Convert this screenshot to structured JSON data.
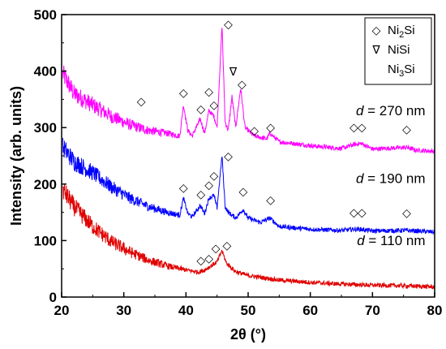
{
  "chart_data": {
    "type": "line",
    "xlabel": "2θ (°)",
    "ylabel": "Intensity (arb. units)",
    "xlim": [
      20,
      80
    ],
    "ylim": [
      0,
      500
    ],
    "x_ticks": [
      "20",
      "30",
      "40",
      "50",
      "60",
      "70",
      "80"
    ],
    "y_ticks": [
      "0",
      "100",
      "200",
      "300",
      "400",
      "500"
    ],
    "grid": false,
    "series": [
      {
        "name": "d = 270 nm",
        "color": "#ff00ff",
        "label_prefix": "d",
        "label_suffix": " = 270 nm",
        "label_at": [
          78.5,
          322
        ],
        "points": [
          [
            20.2,
            395
          ],
          [
            22,
            360
          ],
          [
            25,
            340
          ],
          [
            28,
            320
          ],
          [
            31,
            305
          ],
          [
            34,
            295
          ],
          [
            37,
            290
          ],
          [
            39,
            285
          ],
          [
            39.6,
            340
          ],
          [
            40.3,
            295
          ],
          [
            41,
            285
          ],
          [
            42.3,
            315
          ],
          [
            43,
            290
          ],
          [
            43.7,
            330
          ],
          [
            44.5,
            320
          ],
          [
            45,
            300
          ],
          [
            45.8,
            480
          ],
          [
            46.3,
            310
          ],
          [
            46.8,
            295
          ],
          [
            47.4,
            355
          ],
          [
            48,
            300
          ],
          [
            48.8,
            370
          ],
          [
            49.5,
            300
          ],
          [
            51,
            285
          ],
          [
            53,
            280
          ],
          [
            53.5,
            290
          ],
          [
            55,
            275
          ],
          [
            60,
            268
          ],
          [
            65,
            263
          ],
          [
            67,
            270
          ],
          [
            68.2,
            272
          ],
          [
            70,
            262
          ],
          [
            75.5,
            265
          ],
          [
            77,
            260
          ],
          [
            80,
            258
          ]
        ]
      },
      {
        "name": "d = 190 nm",
        "color": "#0000ff",
        "label_prefix": "d",
        "label_suffix": " = 190 nm",
        "label_at": [
          78.5,
          202
        ],
        "points": [
          [
            20.2,
            265
          ],
          [
            22,
            240
          ],
          [
            25,
            220
          ],
          [
            28,
            195
          ],
          [
            31,
            175
          ],
          [
            34,
            160
          ],
          [
            37,
            150
          ],
          [
            39,
            145
          ],
          [
            39.6,
            175
          ],
          [
            40.3,
            148
          ],
          [
            41,
            142
          ],
          [
            42.3,
            162
          ],
          [
            43,
            148
          ],
          [
            43.7,
            175
          ],
          [
            44.5,
            180
          ],
          [
            45,
            158
          ],
          [
            45.8,
            250
          ],
          [
            46.3,
            160
          ],
          [
            46.8,
            150
          ],
          [
            48,
            140
          ],
          [
            49.2,
            155
          ],
          [
            50,
            140
          ],
          [
            52,
            132
          ],
          [
            53.5,
            140
          ],
          [
            55,
            125
          ],
          [
            60,
            120
          ],
          [
            65,
            118
          ],
          [
            67,
            120
          ],
          [
            68.2,
            120
          ],
          [
            70,
            117
          ],
          [
            75.5,
            118
          ],
          [
            80,
            115
          ]
        ]
      },
      {
        "name": "d = 110 nm",
        "color": "#e00000",
        "label_prefix": "d",
        "label_suffix": " = 110 nm",
        "label_at": [
          78.5,
          92
        ],
        "points": [
          [
            20.2,
            190
          ],
          [
            22,
            160
          ],
          [
            25,
            125
          ],
          [
            28,
            98
          ],
          [
            31,
            80
          ],
          [
            34,
            65
          ],
          [
            37,
            55
          ],
          [
            40,
            48
          ],
          [
            42,
            44
          ],
          [
            43,
            48
          ],
          [
            44,
            55
          ],
          [
            45,
            62
          ],
          [
            45.8,
            82
          ],
          [
            46.5,
            60
          ],
          [
            48,
            45
          ],
          [
            50,
            38
          ],
          [
            55,
            30
          ],
          [
            60,
            26
          ],
          [
            65,
            23
          ],
          [
            70,
            21
          ],
          [
            75,
            20
          ],
          [
            80,
            18
          ]
        ]
      }
    ],
    "markers": [
      {
        "symbol": "◇",
        "x": 32.8,
        "y": 340
      },
      {
        "symbol": "◇",
        "x": 39.6,
        "y": 355
      },
      {
        "symbol": "◇",
        "x": 42.4,
        "y": 326
      },
      {
        "symbol": "◇",
        "x": 43.7,
        "y": 357
      },
      {
        "symbol": "◇",
        "x": 44.5,
        "y": 333
      },
      {
        "symbol": "◇",
        "x": 46.8,
        "y": 476
      },
      {
        "symbol": "∇",
        "x": 47.6,
        "y": 392
      },
      {
        "symbol": "◇",
        "x": 49.0,
        "y": 370
      },
      {
        "symbol": "◇",
        "x": 51.0,
        "y": 288
      },
      {
        "symbol": "◇",
        "x": 53.6,
        "y": 294
      },
      {
        "symbol": "◇",
        "x": 67.0,
        "y": 294
      },
      {
        "symbol": "◇",
        "x": 68.3,
        "y": 294
      },
      {
        "symbol": "◇",
        "x": 75.5,
        "y": 290
      },
      {
        "symbol": "◇",
        "x": 39.6,
        "y": 187
      },
      {
        "symbol": "◇",
        "x": 42.4,
        "y": 175
      },
      {
        "symbol": "◇",
        "x": 43.7,
        "y": 192
      },
      {
        "symbol": "◇",
        "x": 44.5,
        "y": 208
      },
      {
        "symbol": "◇",
        "x": 46.8,
        "y": 243
      },
      {
        "symbol": "◇",
        "x": 49.2,
        "y": 180
      },
      {
        "symbol": "◇",
        "x": 53.6,
        "y": 165
      },
      {
        "symbol": "◇",
        "x": 67.0,
        "y": 143
      },
      {
        "symbol": "◇",
        "x": 68.3,
        "y": 143
      },
      {
        "symbol": "◇",
        "x": 75.5,
        "y": 142
      },
      {
        "symbol": "◇",
        "x": 42.4,
        "y": 58
      },
      {
        "symbol": "◇",
        "x": 43.7,
        "y": 62
      },
      {
        "symbol": "◇",
        "x": 44.8,
        "y": 80
      },
      {
        "symbol": "◇",
        "x": 46.6,
        "y": 85
      }
    ],
    "legend": {
      "placement": "top-right",
      "entries": [
        {
          "symbol": "◇",
          "text": "Ni",
          "sub": "2",
          "tail": "Si"
        },
        {
          "symbol": "∇",
          "text": "NiSi",
          "sub": "",
          "tail": ""
        },
        {
          "symbol": "",
          "text": "Ni",
          "sub": "3",
          "tail": "Si"
        }
      ]
    }
  }
}
